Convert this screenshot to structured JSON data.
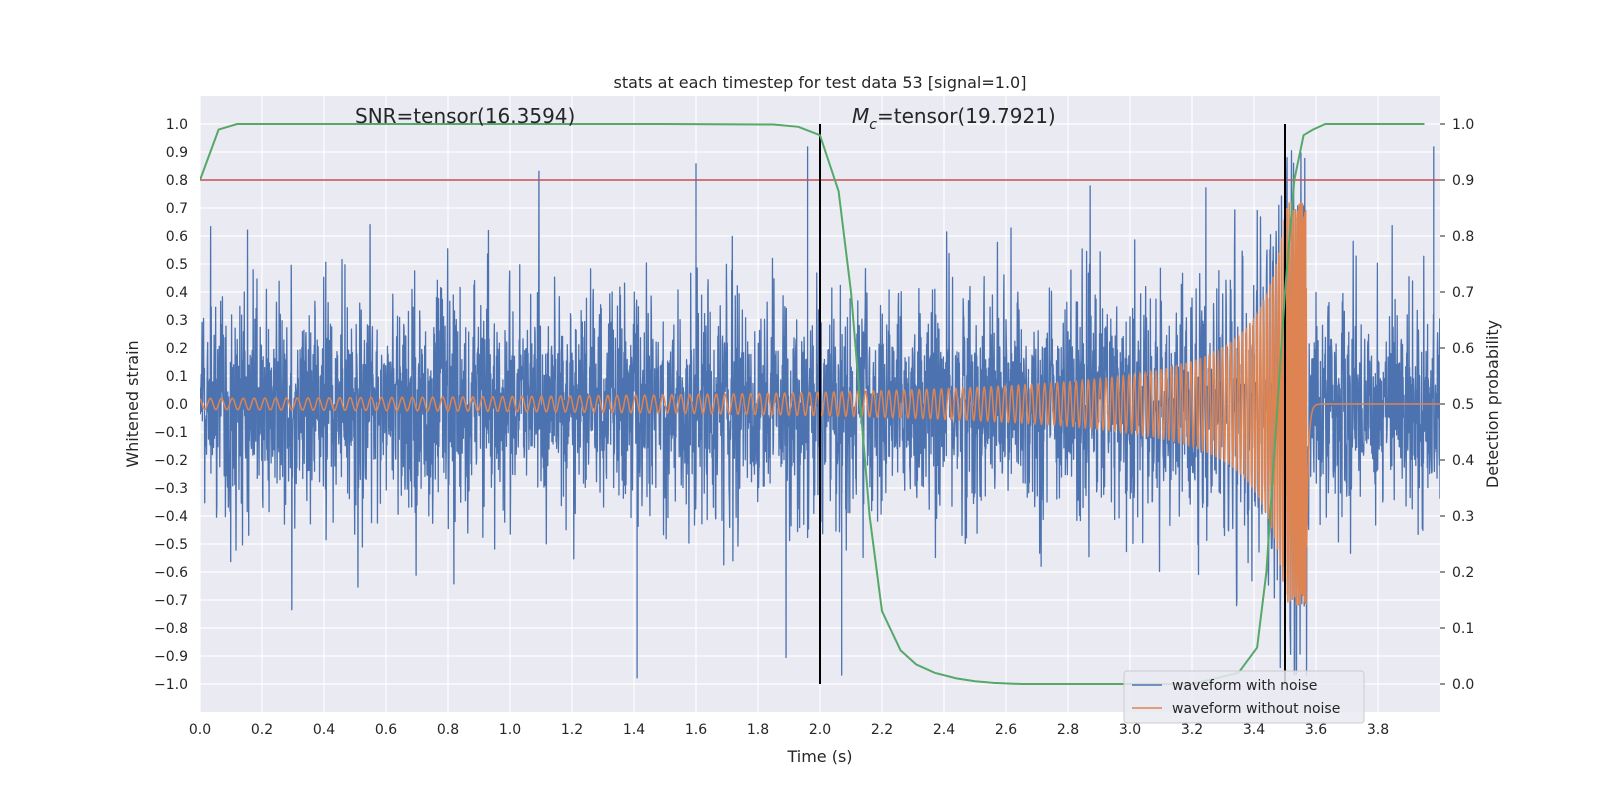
{
  "chart_data": {
    "type": "line",
    "title": "stats at each timestep for test data 53 [signal=1.0]",
    "xlabel": "Time (s)",
    "ylabel": "Whitened strain",
    "y2label": "Detection probability",
    "xlim": [
      0.0,
      4.0
    ],
    "ylim": [
      -1.1,
      1.1
    ],
    "y2lim": [
      -0.05,
      1.05
    ],
    "xticks": [
      0.0,
      0.2,
      0.4,
      0.6,
      0.8,
      1.0,
      1.2,
      1.4,
      1.6,
      1.8,
      2.0,
      2.2,
      2.4,
      2.6,
      2.8,
      3.0,
      3.2,
      3.4,
      3.6,
      3.8
    ],
    "yticks": [
      1.0,
      0.9,
      0.8,
      0.7,
      0.6,
      0.5,
      0.4,
      0.3,
      0.2,
      0.1,
      0.0,
      -0.1,
      -0.2,
      -0.3,
      -0.4,
      -0.5,
      -0.6,
      -0.7,
      -0.8,
      -0.9,
      -1.0
    ],
    "y2ticks": [
      1.0,
      0.9,
      0.8,
      0.7,
      0.6,
      0.5,
      0.4,
      0.3,
      0.2,
      0.1,
      0.0
    ],
    "grid": true,
    "legend_position": "bottom-right",
    "annotations": {
      "snr": "SNR=tensor(16.3594)",
      "mc_symbol": "M",
      "mc_sub": "c",
      "mc_value": "=tensor(19.7921)"
    },
    "series": [
      {
        "name": "waveform with noise",
        "color": "#4c72b0",
        "kind": "noise",
        "typical_amplitude": 0.22,
        "extremes": [
          {
            "x": 1.41,
            "y": -0.98
          },
          {
            "x": 1.6,
            "y": 0.86
          },
          {
            "x": 1.96,
            "y": 0.92
          },
          {
            "x": 2.07,
            "y": -0.97
          },
          {
            "x": 3.53,
            "y": -0.97
          },
          {
            "x": 3.98,
            "y": 0.92
          }
        ]
      },
      {
        "name": "waveform without noise",
        "color": "#dd8452",
        "kind": "chirp",
        "merger_time": 3.57,
        "peak_amplitude": 0.72,
        "early_amplitude": 0.02
      },
      {
        "name": "detection probability",
        "axis": "right",
        "color": "#55a868",
        "x": [
          0.0,
          0.06,
          0.12,
          0.2,
          0.5,
          1.0,
          1.5,
          1.85,
          1.93,
          2.0,
          2.06,
          2.1,
          2.13,
          2.16,
          2.2,
          2.26,
          2.31,
          2.37,
          2.44,
          2.5,
          2.56,
          2.65,
          2.8,
          3.0,
          3.2,
          3.35,
          3.41,
          3.44,
          3.47,
          3.5,
          3.53,
          3.56,
          3.59,
          3.63,
          3.75,
          3.95
        ],
        "y": [
          0.9,
          0.99,
          1.0,
          1.0,
          1.0,
          1.0,
          1.0,
          0.999,
          0.995,
          0.98,
          0.88,
          0.7,
          0.5,
          0.3,
          0.13,
          0.06,
          0.035,
          0.02,
          0.01,
          0.005,
          0.002,
          0.0,
          0.0,
          0.0,
          0.0,
          0.02,
          0.065,
          0.2,
          0.45,
          0.7,
          0.9,
          0.98,
          0.99,
          1.0,
          1.0,
          1.0
        ]
      }
    ],
    "threshold": {
      "axis": "right",
      "value": 0.9,
      "color": "#c44e52"
    },
    "vlines": [
      {
        "x": 2.0,
        "color": "#000000",
        "y_from": -1.0,
        "y_to": 1.0
      },
      {
        "x": 3.5,
        "color": "#000000",
        "y_from": -1.0,
        "y_to": 1.0
      }
    ]
  }
}
